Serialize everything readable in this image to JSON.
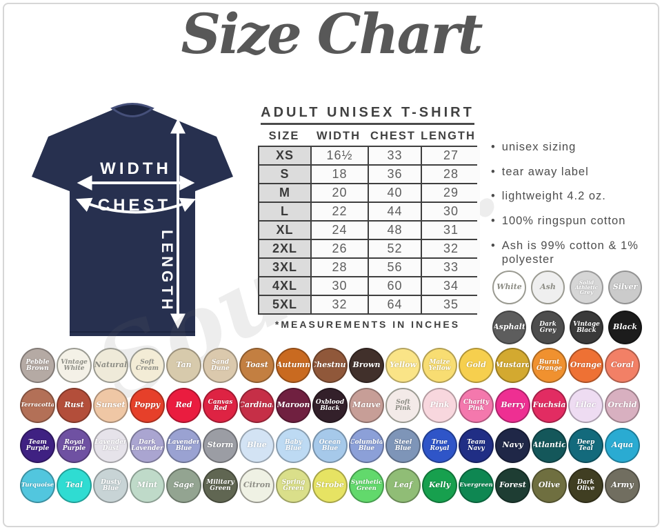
{
  "title": "Size Chart",
  "watermark": "Soul Co.",
  "shirt": {
    "color": "#27304f",
    "width_label": "WIDTH",
    "chest_label": "CHEST",
    "length_label": "LENGTH"
  },
  "size_table": {
    "title": "ADULT UNISEX T-SHIRT",
    "columns": [
      "SIZE",
      "WIDTH",
      "CHEST",
      "LENGTH"
    ],
    "rows": [
      [
        "XS",
        "16½",
        "33",
        "27"
      ],
      [
        "S",
        "18",
        "36",
        "28"
      ],
      [
        "M",
        "20",
        "40",
        "29"
      ],
      [
        "L",
        "22",
        "44",
        "30"
      ],
      [
        "XL",
        "24",
        "48",
        "31"
      ],
      [
        "2XL",
        "26",
        "52",
        "32"
      ],
      [
        "3XL",
        "28",
        "56",
        "33"
      ],
      [
        "4XL",
        "30",
        "60",
        "34"
      ],
      [
        "5XL",
        "32",
        "64",
        "35"
      ]
    ],
    "footnote": "*MEASUREMENTS IN INCHES"
  },
  "features": [
    "unisex sizing",
    "tear away label",
    "lightweight 4.2 oz.",
    "100% ringspun cotton",
    "Ash is 99% cotton & 1% polyester"
  ],
  "grey_swatches": [
    {
      "name": "White",
      "hex": "#ffffff",
      "ink": "dark"
    },
    {
      "name": "Ash",
      "hex": "#efefef",
      "ink": "dark"
    },
    {
      "name": "Solid Athletic Grey",
      "hex": "#d6d6d6",
      "ink": "light"
    },
    {
      "name": "Silver",
      "hex": "#cbcbcb",
      "ink": "light"
    },
    {
      "name": "Asphalt",
      "hex": "#5d5d5d",
      "ink": "light"
    },
    {
      "name": "Dark Grey",
      "hex": "#4d4d4d",
      "ink": "light"
    },
    {
      "name": "Vintage Black",
      "hex": "#3a3a3a",
      "ink": "light"
    },
    {
      "name": "Black",
      "hex": "#1c1c1c",
      "ink": "light"
    }
  ],
  "color_rows": [
    [
      {
        "name": "Pebble Brown",
        "hex": "#b5aaa4",
        "ink": "light"
      },
      {
        "name": "Vintage White",
        "hex": "#f4f1e7",
        "ink": "dark"
      },
      {
        "name": "Natural",
        "hex": "#efead9",
        "ink": "dark"
      },
      {
        "name": "Soft Cream",
        "hex": "#f3ecd6",
        "ink": "dark"
      },
      {
        "name": "Tan",
        "hex": "#d7caac",
        "ink": "light"
      },
      {
        "name": "Sand Dune",
        "hex": "#dbc9ad",
        "ink": "light"
      },
      {
        "name": "Toast",
        "hex": "#c37f41",
        "ink": "light"
      },
      {
        "name": "Autumn",
        "hex": "#c96a20",
        "ink": "light"
      },
      {
        "name": "Chestnut",
        "hex": "#90583a",
        "ink": "light"
      },
      {
        "name": "Brown",
        "hex": "#41302b",
        "ink": "light"
      },
      {
        "name": "Yellow",
        "hex": "#fae487",
        "ink": "light"
      },
      {
        "name": "Maize Yellow",
        "hex": "#f8dd72",
        "ink": "light"
      },
      {
        "name": "Gold",
        "hex": "#f6cf4e",
        "ink": "light"
      },
      {
        "name": "Mustard",
        "hex": "#d3a930",
        "ink": "light"
      },
      {
        "name": "Burnt Orange",
        "hex": "#f0912f",
        "ink": "light"
      },
      {
        "name": "Orange",
        "hex": "#ee7134",
        "ink": "light"
      },
      {
        "name": "Coral",
        "hex": "#f28066",
        "ink": "light"
      }
    ],
    [
      {
        "name": "Terracotta",
        "hex": "#b37057",
        "ink": "light"
      },
      {
        "name": "Rust",
        "hex": "#b34e3a",
        "ink": "light"
      },
      {
        "name": "Sunset",
        "hex": "#efc7a5",
        "ink": "light"
      },
      {
        "name": "Poppy",
        "hex": "#e6402a",
        "ink": "light"
      },
      {
        "name": "Red",
        "hex": "#ea1c3f",
        "ink": "light"
      },
      {
        "name": "Canvas Red",
        "hex": "#de2343",
        "ink": "light"
      },
      {
        "name": "Cardinal",
        "hex": "#c62f47",
        "ink": "light"
      },
      {
        "name": "Maroon",
        "hex": "#702040",
        "ink": "light"
      },
      {
        "name": "Oxblood Black",
        "hex": "#33202a",
        "ink": "light"
      },
      {
        "name": "Mauve",
        "hex": "#c79e97",
        "ink": "light"
      },
      {
        "name": "Soft Pink",
        "hex": "#f3eae8",
        "ink": "dark"
      },
      {
        "name": "Pink",
        "hex": "#f8d7de",
        "ink": "light"
      },
      {
        "name": "Charity Pink",
        "hex": "#f478ad",
        "ink": "light"
      },
      {
        "name": "Berry",
        "hex": "#ee2f92",
        "ink": "light"
      },
      {
        "name": "Fuchsia",
        "hex": "#e22c62",
        "ink": "light"
      },
      {
        "name": "Lilac",
        "hex": "#eedcf2",
        "ink": "light"
      },
      {
        "name": "Orchid",
        "hex": "#d8b0c0",
        "ink": "light"
      }
    ],
    [
      {
        "name": "Team Purple",
        "hex": "#3f2182",
        "ink": "light"
      },
      {
        "name": "Royal Purple",
        "hex": "#6f51a2",
        "ink": "light"
      },
      {
        "name": "Lavender Dust",
        "hex": "#e6e3ea",
        "ink": "light"
      },
      {
        "name": "Dark Lavender",
        "hex": "#aaa5d1",
        "ink": "light"
      },
      {
        "name": "Lavender Blue",
        "hex": "#9aa2d2",
        "ink": "light"
      },
      {
        "name": "Storm",
        "hex": "#9b9da4",
        "ink": "light"
      },
      {
        "name": "Blue",
        "hex": "#d3e3f4",
        "ink": "light"
      },
      {
        "name": "Baby Blue",
        "hex": "#bddaf3",
        "ink": "light"
      },
      {
        "name": "Ocean Blue",
        "hex": "#a6c9ea",
        "ink": "light"
      },
      {
        "name": "Columbia Blue",
        "hex": "#8ca0d8",
        "ink": "light"
      },
      {
        "name": "Steel Blue",
        "hex": "#7e95b8",
        "ink": "light"
      },
      {
        "name": "True Royal",
        "hex": "#2f55c8",
        "ink": "light"
      },
      {
        "name": "Team Navy",
        "hex": "#202e85",
        "ink": "light"
      },
      {
        "name": "Navy",
        "hex": "#1f2747",
        "ink": "light"
      },
      {
        "name": "Atlantic",
        "hex": "#14575a",
        "ink": "light"
      },
      {
        "name": "Deep Teal",
        "hex": "#136a7c",
        "ink": "light"
      },
      {
        "name": "Aqua",
        "hex": "#2aabd2",
        "ink": "light"
      }
    ],
    [
      {
        "name": "Turquoise",
        "hex": "#52c6de",
        "ink": "light"
      },
      {
        "name": "Teal",
        "hex": "#2fdcd2",
        "ink": "light"
      },
      {
        "name": "Dusty Blue",
        "hex": "#c8d4d6",
        "ink": "light"
      },
      {
        "name": "Mint",
        "hex": "#bfdac9",
        "ink": "light"
      },
      {
        "name": "Sage",
        "hex": "#93a491",
        "ink": "light"
      },
      {
        "name": "Military Green",
        "hex": "#606652",
        "ink": "light"
      },
      {
        "name": "Citron",
        "hex": "#eff1e4",
        "ink": "dark"
      },
      {
        "name": "Spring Green",
        "hex": "#dadf8a",
        "ink": "light"
      },
      {
        "name": "Strobe",
        "hex": "#e6e363",
        "ink": "light"
      },
      {
        "name": "Synthetic Green",
        "hex": "#62d96c",
        "ink": "light"
      },
      {
        "name": "Leaf",
        "hex": "#90bd76",
        "ink": "light"
      },
      {
        "name": "Kelly",
        "hex": "#17a04e",
        "ink": "light"
      },
      {
        "name": "Evergreen",
        "hex": "#0e8752",
        "ink": "light"
      },
      {
        "name": "Forest",
        "hex": "#1e3d33",
        "ink": "light"
      },
      {
        "name": "Olive",
        "hex": "#6f6f40",
        "ink": "light"
      },
      {
        "name": "Dark Olive",
        "hex": "#403e22",
        "ink": "light"
      },
      {
        "name": "Army",
        "hex": "#716e60",
        "ink": "light"
      }
    ]
  ]
}
